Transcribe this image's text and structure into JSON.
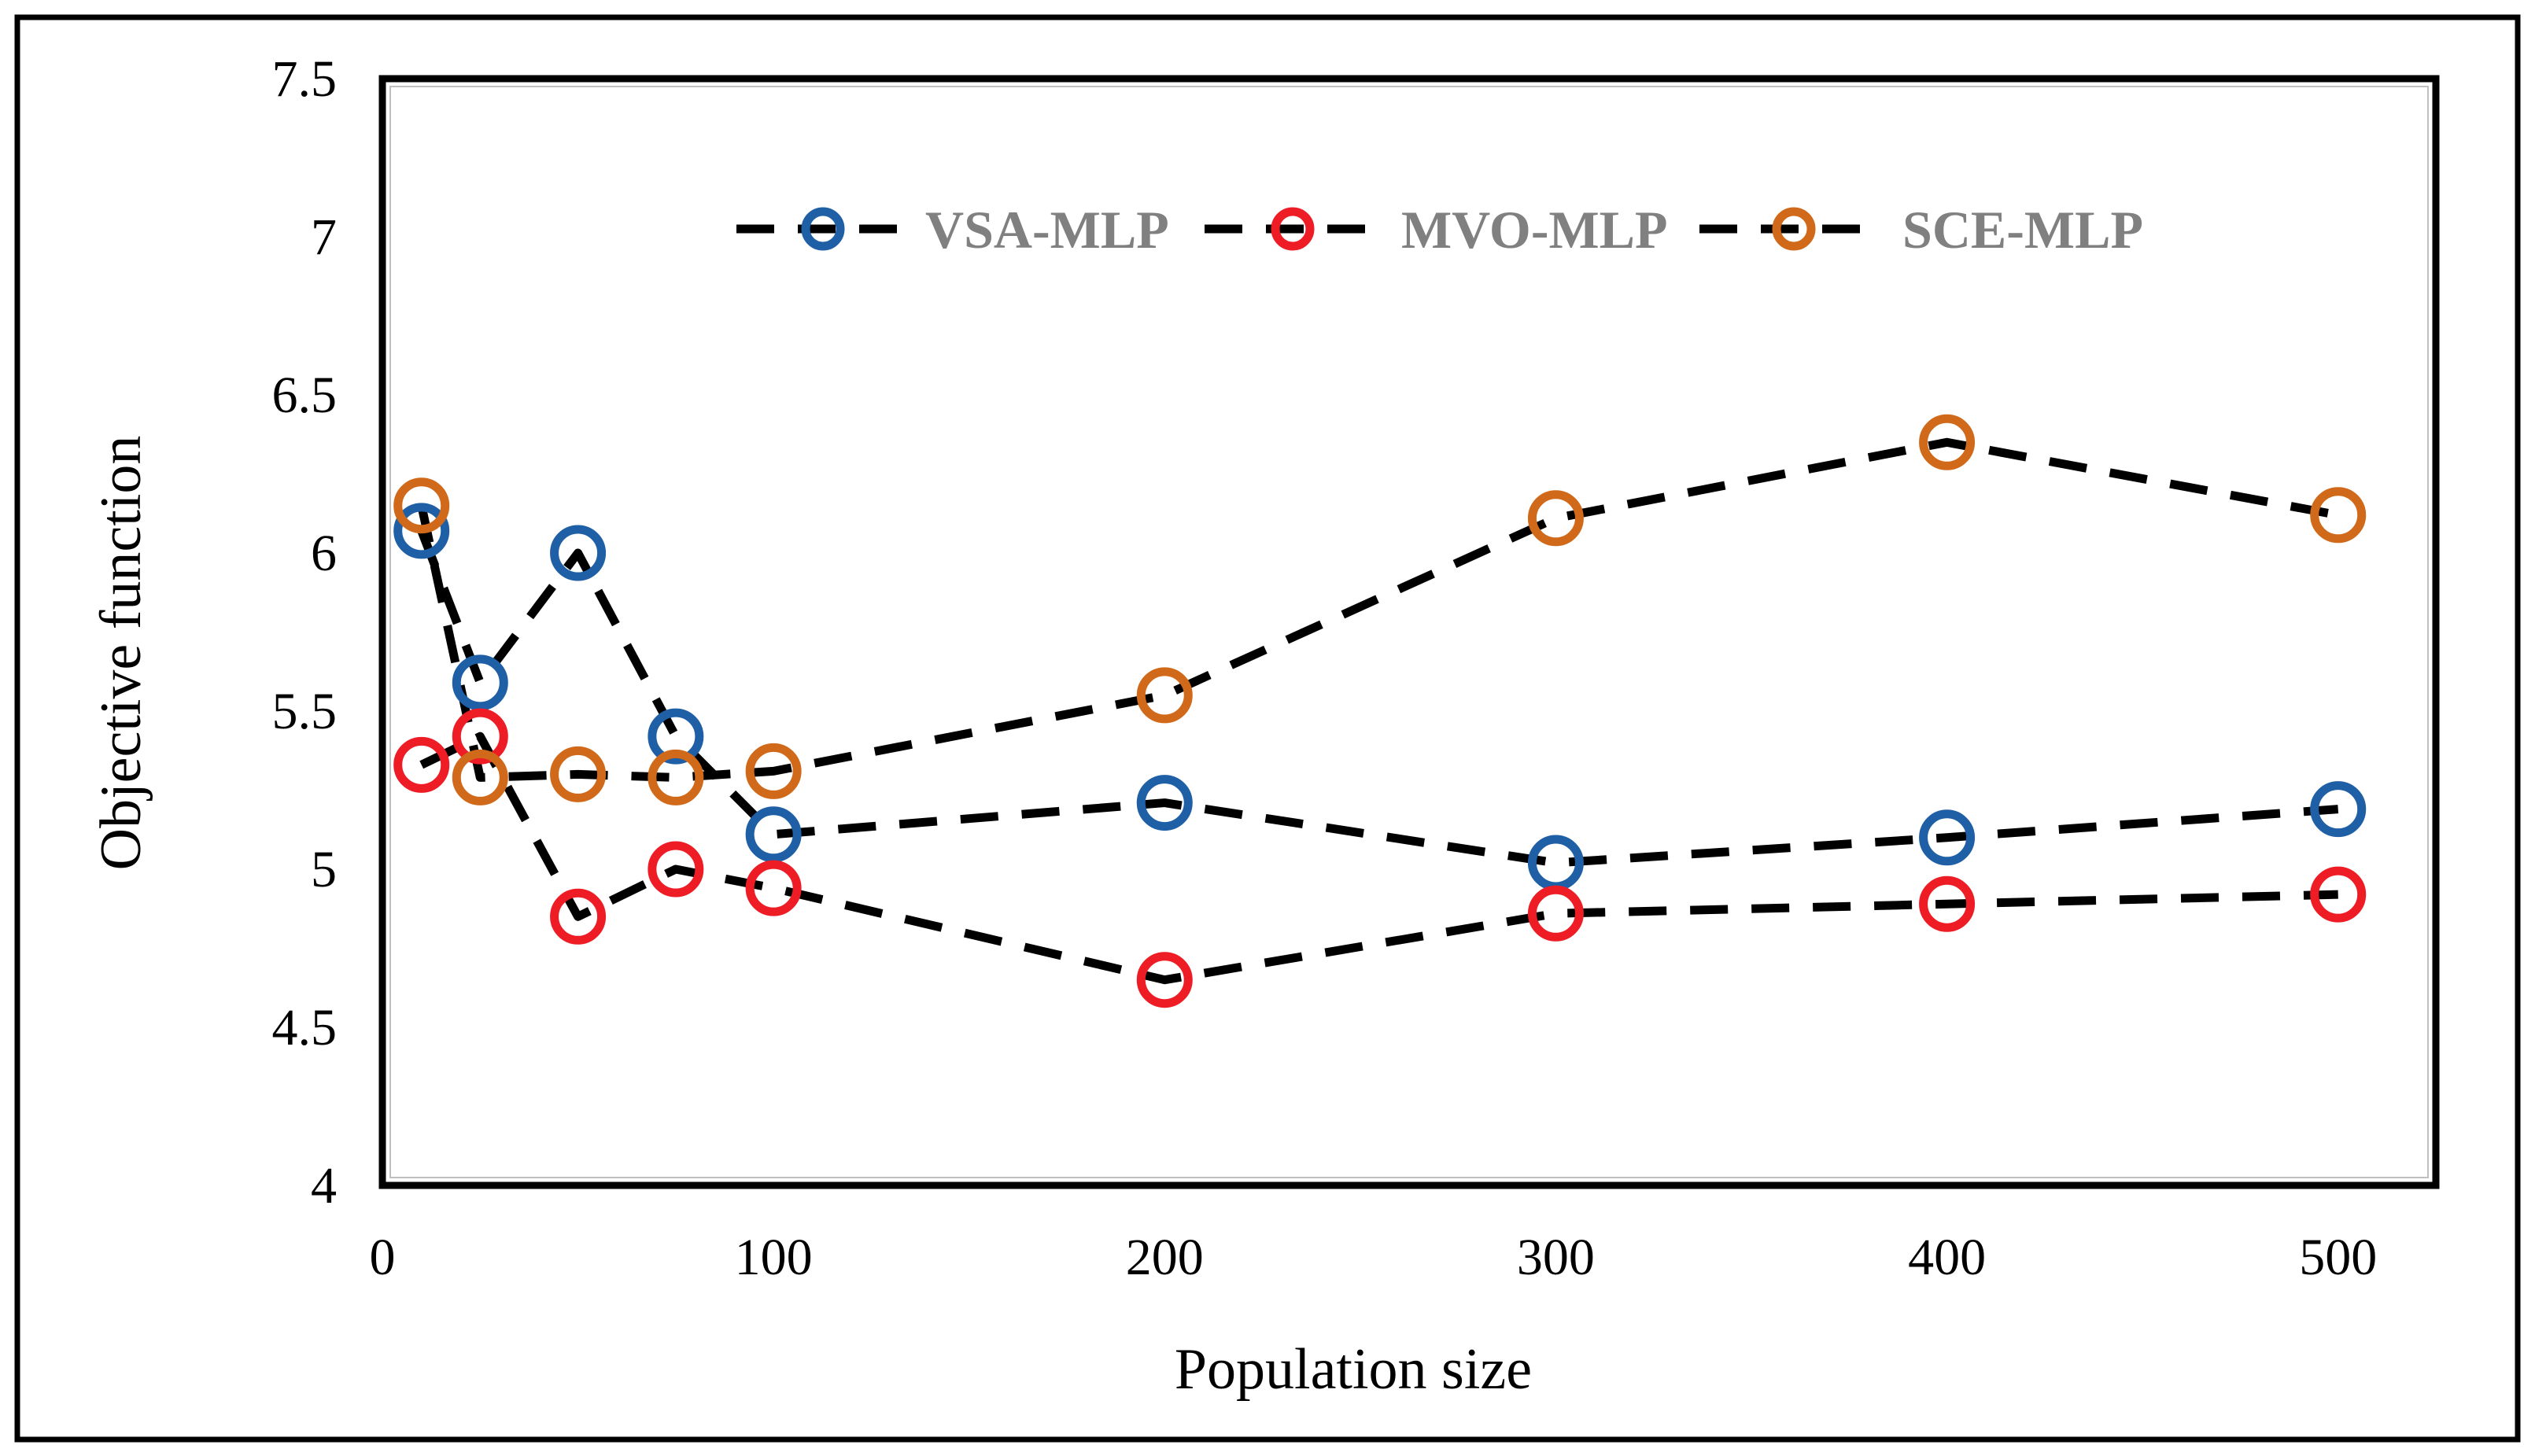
{
  "chart_data": {
    "type": "line",
    "title": "",
    "xlabel": "Population size",
    "ylabel": "Objective function",
    "xlim": [
      0,
      525
    ],
    "ylim": [
      4,
      7.5
    ],
    "xticks": [
      0,
      100,
      200,
      300,
      400,
      500
    ],
    "yticks": [
      4,
      4.5,
      5,
      5.5,
      6,
      6.5,
      7,
      7.5
    ],
    "ytick_labels": [
      "4",
      "4.5",
      "5",
      "5.5",
      "6",
      "6.5",
      "7",
      "7.5"
    ],
    "grid": false,
    "legend": "top-center",
    "line_style": "dashed",
    "line_color": "#000000",
    "x": [
      10,
      25,
      50,
      75,
      100,
      200,
      300,
      400,
      500
    ],
    "series": [
      {
        "name": "VSA-MLP",
        "color": "#1f5fa6",
        "values": [
          6.07,
          5.59,
          6.0,
          5.42,
          5.11,
          5.21,
          5.02,
          5.1,
          5.19
        ]
      },
      {
        "name": "MVO-MLP",
        "color": "#ee1c25",
        "values": [
          5.33,
          5.42,
          4.85,
          5.0,
          4.94,
          4.65,
          4.86,
          4.89,
          4.92
        ]
      },
      {
        "name": "SCE-MLP",
        "color": "#d06a1a",
        "values": [
          6.15,
          5.29,
          5.3,
          5.29,
          5.31,
          5.55,
          6.11,
          6.35,
          6.12
        ]
      }
    ]
  }
}
